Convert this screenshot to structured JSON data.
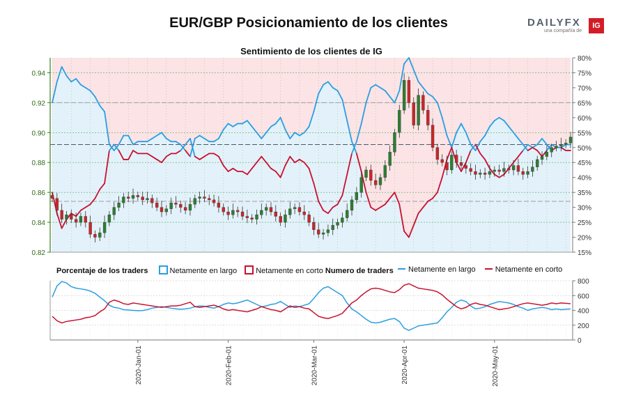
{
  "title": "EUR/GBP Posicionamiento de los clientes",
  "brand": {
    "logo_text": "DAILYFX",
    "logo_sub": "una compañía de",
    "ig": "IG",
    "ig_color": "#d31d26"
  },
  "colors": {
    "long": "#2a9ee0",
    "short": "#c8102e",
    "long_fill": "#e3f1fb",
    "short_fill": "#fbe3e6",
    "candle_up": "#2e7d32",
    "candle_down": "#c62828",
    "axis": "#3a7d22"
  },
  "legend": {
    "pct_title": "Porcentaje de los traders",
    "long": "Netamente en largo",
    "short": "Netamente en corto",
    "num_title": "Numero de traders",
    "num_long": "Netamente en largo",
    "num_short": "Netamente en corto"
  },
  "chart_data": [
    {
      "type": "candlestick",
      "title": "Sentimiento de los clientes de IG",
      "n": 110,
      "ylim": [
        0.82,
        0.95
      ],
      "y_ticks": [
        "0.82",
        "0.84",
        "0.86",
        "0.88",
        "0.90",
        "0.92",
        "0.94"
      ],
      "close": [
        0.856,
        0.848,
        0.842,
        0.845,
        0.842,
        0.84,
        0.844,
        0.84,
        0.832,
        0.83,
        0.833,
        0.84,
        0.845,
        0.85,
        0.853,
        0.857,
        0.856,
        0.858,
        0.857,
        0.855,
        0.856,
        0.853,
        0.85,
        0.847,
        0.849,
        0.853,
        0.852,
        0.85,
        0.848,
        0.852,
        0.856,
        0.857,
        0.856,
        0.855,
        0.853,
        0.85,
        0.847,
        0.845,
        0.848,
        0.847,
        0.844,
        0.843,
        0.842,
        0.845,
        0.848,
        0.85,
        0.847,
        0.844,
        0.84,
        0.845,
        0.849,
        0.85,
        0.847,
        0.845,
        0.84,
        0.835,
        0.832,
        0.833,
        0.835,
        0.838,
        0.84,
        0.843,
        0.848,
        0.855,
        0.86,
        0.87,
        0.875,
        0.868,
        0.865,
        0.87,
        0.878,
        0.887,
        0.9,
        0.915,
        0.935,
        0.92,
        0.905,
        0.925,
        0.915,
        0.905,
        0.89,
        0.882,
        0.88,
        0.875,
        0.885,
        0.88,
        0.878,
        0.876,
        0.874,
        0.872,
        0.873,
        0.872,
        0.874,
        0.875,
        0.874,
        0.876,
        0.875,
        0.878,
        0.874,
        0.872,
        0.874,
        0.877,
        0.882,
        0.884,
        0.887,
        0.89,
        0.891,
        0.892,
        0.893,
        0.897
      ],
      "long_pct": {
        "ylim": [
          15,
          80
        ],
        "y_ticks": [
          "15%",
          "20%",
          "25%",
          "30%",
          "35%",
          "40%",
          "45%",
          "50%",
          "55%",
          "60%",
          "65%",
          "70%",
          "75%",
          "80%"
        ],
        "values": [
          65,
          72,
          77,
          74,
          72,
          73,
          71,
          70,
          69,
          67,
          64,
          62,
          51,
          49,
          51,
          54,
          54,
          51,
          52,
          52,
          52,
          53,
          54,
          55,
          53,
          52,
          52,
          51,
          49,
          47,
          53,
          54,
          53,
          52,
          52,
          53,
          56,
          58,
          57,
          58,
          58,
          59,
          57,
          55,
          53,
          55,
          57,
          58,
          60,
          56,
          53,
          55,
          54,
          55,
          57,
          62,
          68,
          71,
          72,
          70,
          69,
          66,
          59,
          52,
          48,
          42,
          35,
          30,
          29,
          30,
          31,
          33,
          35,
          31,
          22,
          20,
          24,
          28,
          30,
          32,
          33,
          35,
          40,
          46,
          50,
          55,
          58,
          55,
          51,
          49,
          52,
          54,
          57,
          59,
          60,
          59,
          57,
          55,
          53,
          51,
          49,
          50,
          51,
          53,
          51,
          49,
          50,
          50,
          51,
          51
        ],
        "reference_lines": [
          65,
          32,
          51
        ]
      },
      "short_pct": {
        "note": "100 - long_pct"
      }
    },
    {
      "type": "line",
      "title": "Numero de traders",
      "ylim": [
        0,
        800
      ],
      "y_ticks": [
        "0",
        "200",
        "400",
        "600",
        "800"
      ],
      "x_tick_labels": [
        "2020-Jan-01",
        "2020-Feb-01",
        "2020-Mar-01",
        "2020-Apr-01",
        "2020-May-01"
      ],
      "x_tick_index": [
        18,
        37,
        55,
        74,
        93
      ],
      "series": [
        {
          "name": "Netamente en largo",
          "values": [
            580,
            730,
            790,
            770,
            720,
            700,
            690,
            680,
            660,
            630,
            580,
            530,
            470,
            440,
            430,
            410,
            405,
            400,
            395,
            398,
            410,
            430,
            440,
            450,
            440,
            430,
            420,
            415,
            420,
            430,
            450,
            460,
            455,
            440,
            430,
            450,
            480,
            500,
            490,
            500,
            520,
            540,
            510,
            480,
            450,
            460,
            480,
            490,
            520,
            480,
            440,
            460,
            450,
            470,
            490,
            560,
            640,
            700,
            720,
            680,
            640,
            600,
            500,
            420,
            380,
            330,
            280,
            240,
            230,
            240,
            260,
            280,
            290,
            250,
            160,
            130,
            160,
            190,
            200,
            210,
            220,
            230,
            300,
            380,
            440,
            510,
            540,
            520,
            460,
            420,
            430,
            450,
            480,
            500,
            520,
            510,
            500,
            480,
            450,
            430,
            400,
            420,
            430,
            440,
            430,
            410,
            420,
            410,
            415,
            420
          ]
        },
        {
          "name": "Netamente en corto",
          "values": [
            320,
            260,
            230,
            250,
            260,
            270,
            280,
            300,
            310,
            330,
            380,
            420,
            510,
            540,
            520,
            490,
            480,
            500,
            490,
            480,
            470,
            460,
            450,
            440,
            450,
            460,
            460,
            470,
            490,
            510,
            450,
            440,
            450,
            460,
            470,
            450,
            420,
            400,
            410,
            400,
            390,
            380,
            400,
            420,
            450,
            430,
            410,
            400,
            380,
            420,
            460,
            440,
            450,
            430,
            420,
            370,
            320,
            300,
            290,
            310,
            330,
            360,
            430,
            500,
            540,
            600,
            650,
            690,
            700,
            690,
            670,
            650,
            640,
            680,
            740,
            760,
            730,
            700,
            690,
            680,
            670,
            650,
            610,
            550,
            500,
            450,
            420,
            440,
            480,
            500,
            480,
            470,
            450,
            430,
            410,
            420,
            430,
            450,
            470,
            490,
            500,
            490,
            480,
            470,
            480,
            500,
            490,
            500,
            495,
            490
          ]
        }
      ]
    }
  ]
}
